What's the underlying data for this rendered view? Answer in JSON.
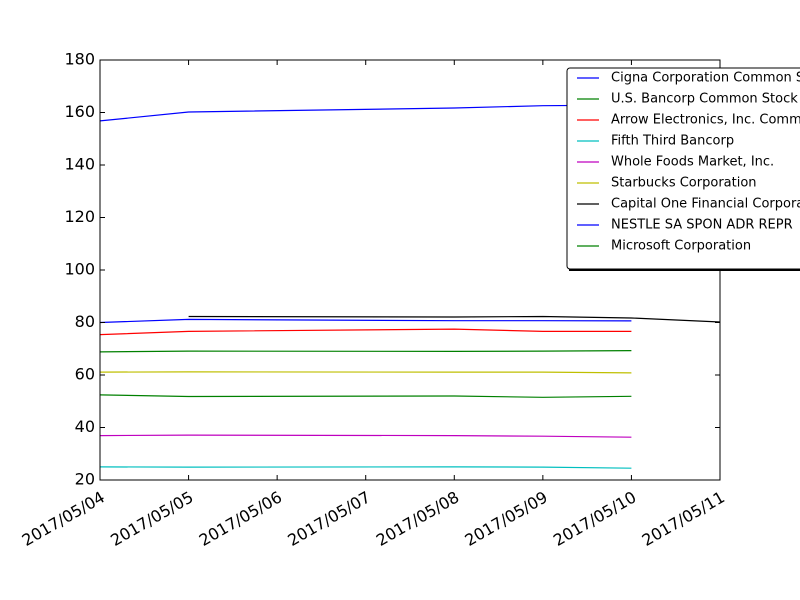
{
  "chart_data": {
    "type": "line",
    "title": "",
    "xlabel": "",
    "ylabel": "",
    "x": [
      "2017/05/04",
      "2017/05/05",
      "2017/05/08",
      "2017/05/09",
      "2017/05/10",
      "2017/05/11"
    ],
    "xlim": [
      "2017/05/04",
      "2017/05/11"
    ],
    "x_ticks": [
      "2017/05/04",
      "2017/05/05",
      "2017/05/06",
      "2017/05/07",
      "2017/05/08",
      "2017/05/09",
      "2017/05/10",
      "2017/05/11"
    ],
    "ylim": [
      20,
      180
    ],
    "y_ticks": [
      20,
      40,
      60,
      80,
      100,
      120,
      140,
      160,
      180
    ],
    "grid": false,
    "legend_position": "top-right",
    "series": [
      {
        "name": "Cigna Corporation Common Stock",
        "color": "#0000ff",
        "values": [
          156.8,
          160.2,
          161.7,
          162.6,
          162.8,
          null
        ]
      },
      {
        "name": "U.S. Bancorp Common Stock",
        "color": "#008000",
        "values": [
          52.4,
          51.8,
          52.0,
          51.5,
          51.9,
          null
        ]
      },
      {
        "name": "Arrow Electronics, Inc. Common Stock",
        "color": "#ff0000",
        "values": [
          75.4,
          76.6,
          77.5,
          76.6,
          76.6,
          null
        ]
      },
      {
        "name": "Fifth Third Bancorp",
        "color": "#00bfbf",
        "values": [
          25.0,
          24.9,
          25.0,
          24.9,
          24.5,
          null
        ]
      },
      {
        "name": "Whole Foods Market, Inc.",
        "color": "#bf00bf",
        "values": [
          36.9,
          37.1,
          36.9,
          36.7,
          36.3,
          null
        ]
      },
      {
        "name": "Starbucks Corporation",
        "color": "#bfbf00",
        "values": [
          61.1,
          61.2,
          61.1,
          61.1,
          60.8,
          null
        ]
      },
      {
        "name": "Capital One Financial Corporation",
        "color": "#000000",
        "values": [
          null,
          82.3,
          82.1,
          82.3,
          81.7,
          80.2
        ]
      },
      {
        "name": "NESTLE SA SPON ADR REPR",
        "color": "#0000ff",
        "values": [
          80.0,
          81.2,
          80.7,
          80.7,
          80.6,
          null
        ]
      },
      {
        "name": "Microsoft Corporation",
        "color": "#008000",
        "values": [
          68.8,
          69.1,
          69.0,
          69.1,
          69.3,
          null
        ]
      }
    ]
  }
}
